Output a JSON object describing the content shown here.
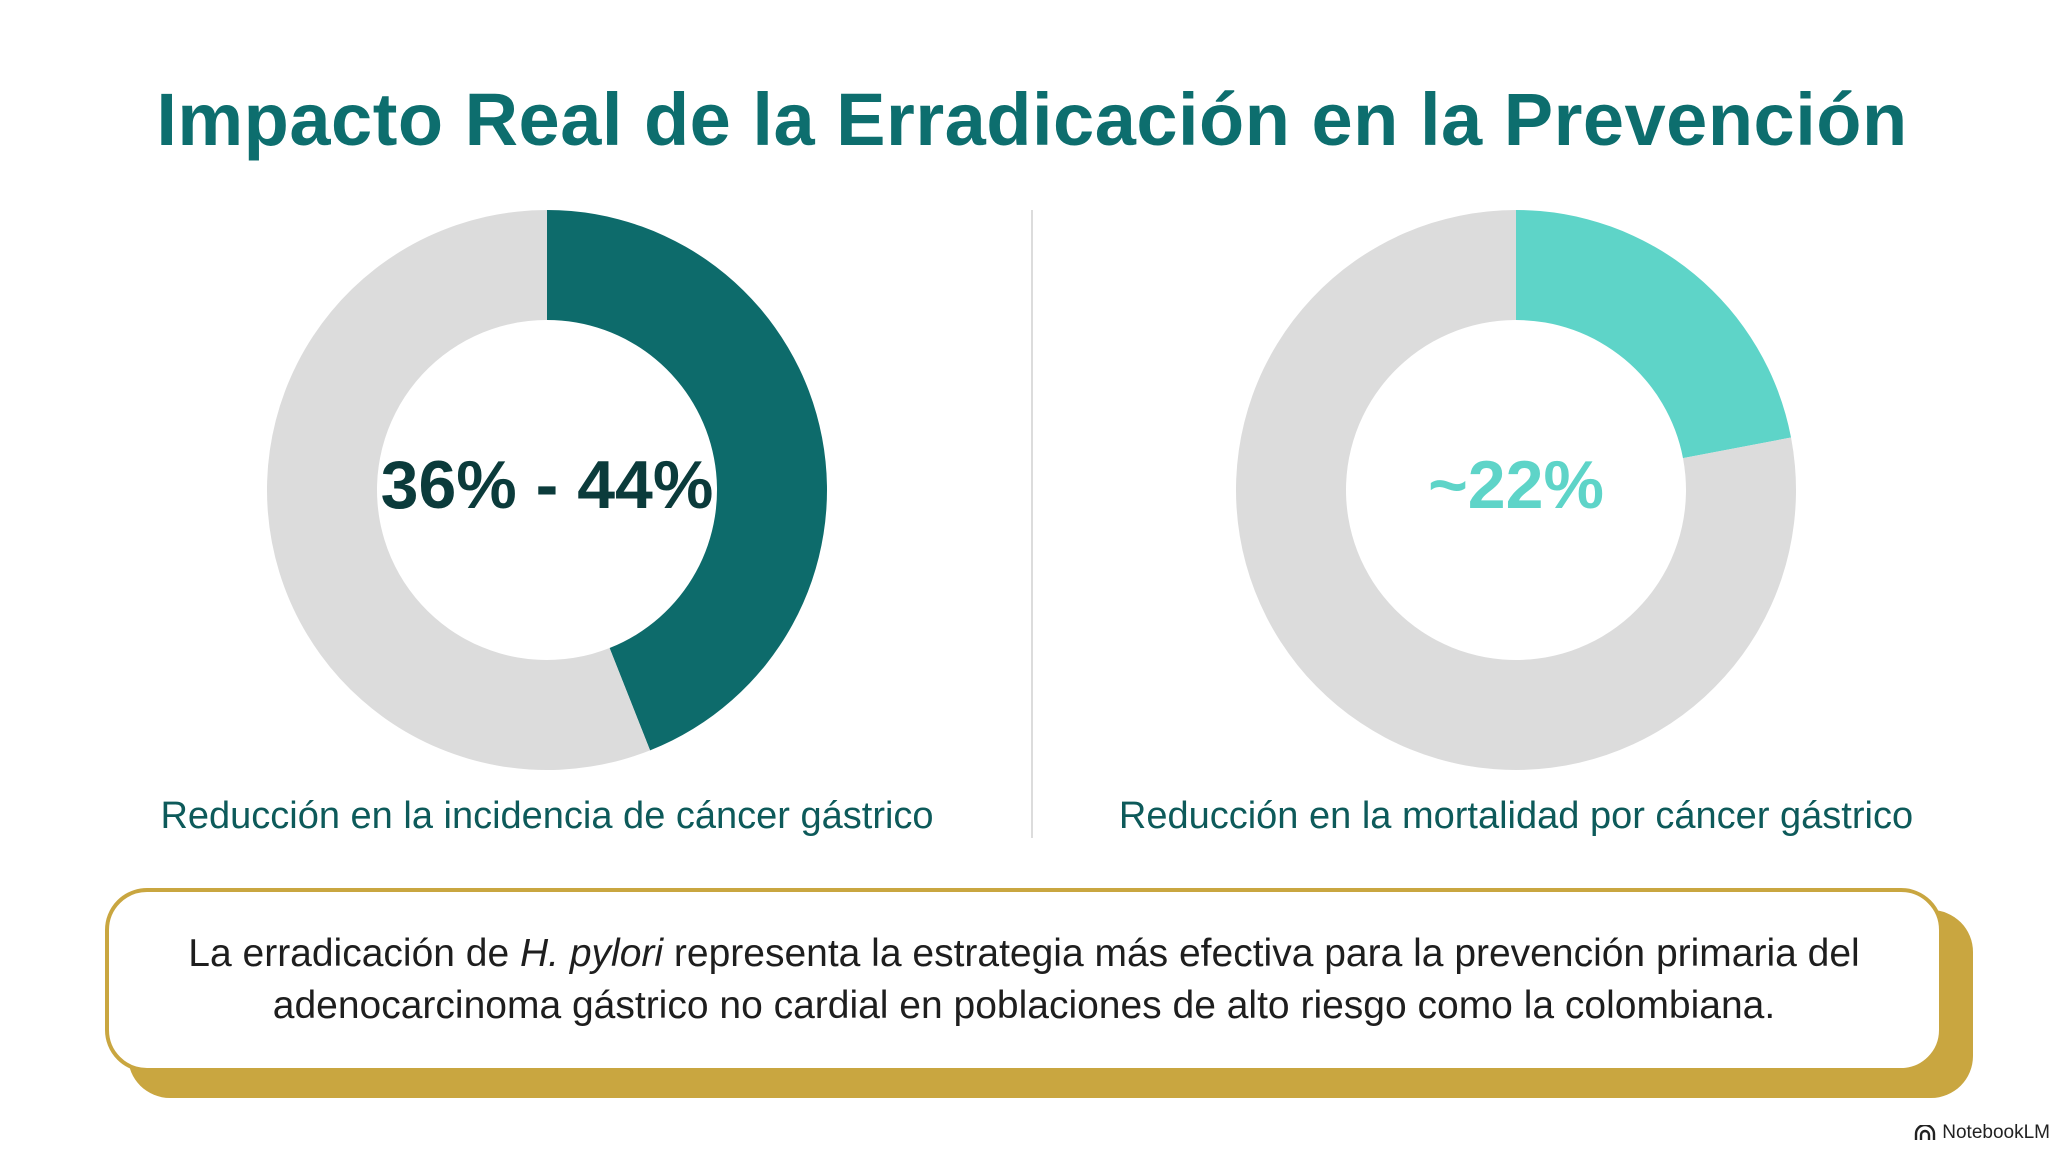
{
  "title": "Impacto Real de la Erradicación en la Prevención",
  "colors": {
    "title": "#0d6e6e",
    "track": "#dcdcdc",
    "dark_teal": "#0d6b6b",
    "light_teal": "#5ed4c8",
    "left_value_text": "#0b3b3b",
    "right_value_text": "#5ed4c8",
    "caption": "#0d5a5a",
    "callout_border": "#c9a640",
    "callout_shadow": "#c9a640"
  },
  "chart_data": [
    {
      "type": "pie",
      "variant": "donut",
      "center_label": "36% - 44%",
      "values": [
        44,
        56
      ],
      "caption": "Reducción en la incidencia de cáncer gástrico"
    },
    {
      "type": "pie",
      "variant": "donut",
      "center_label": "~22%",
      "values": [
        22,
        78
      ],
      "caption": "Reducción en la mortalidad por cáncer gástrico"
    }
  ],
  "callout": {
    "text_before": "La erradicación de ",
    "text_italic": "H. pylori",
    "text_after": " representa la estrategia más efectiva para la prevención primaria del adenocarcinoma gástrico no cardial en poblaciones de alto riesgo como la colombiana."
  },
  "branding": {
    "icon": "notebooklm-logo-icon",
    "label": "NotebookLM"
  }
}
